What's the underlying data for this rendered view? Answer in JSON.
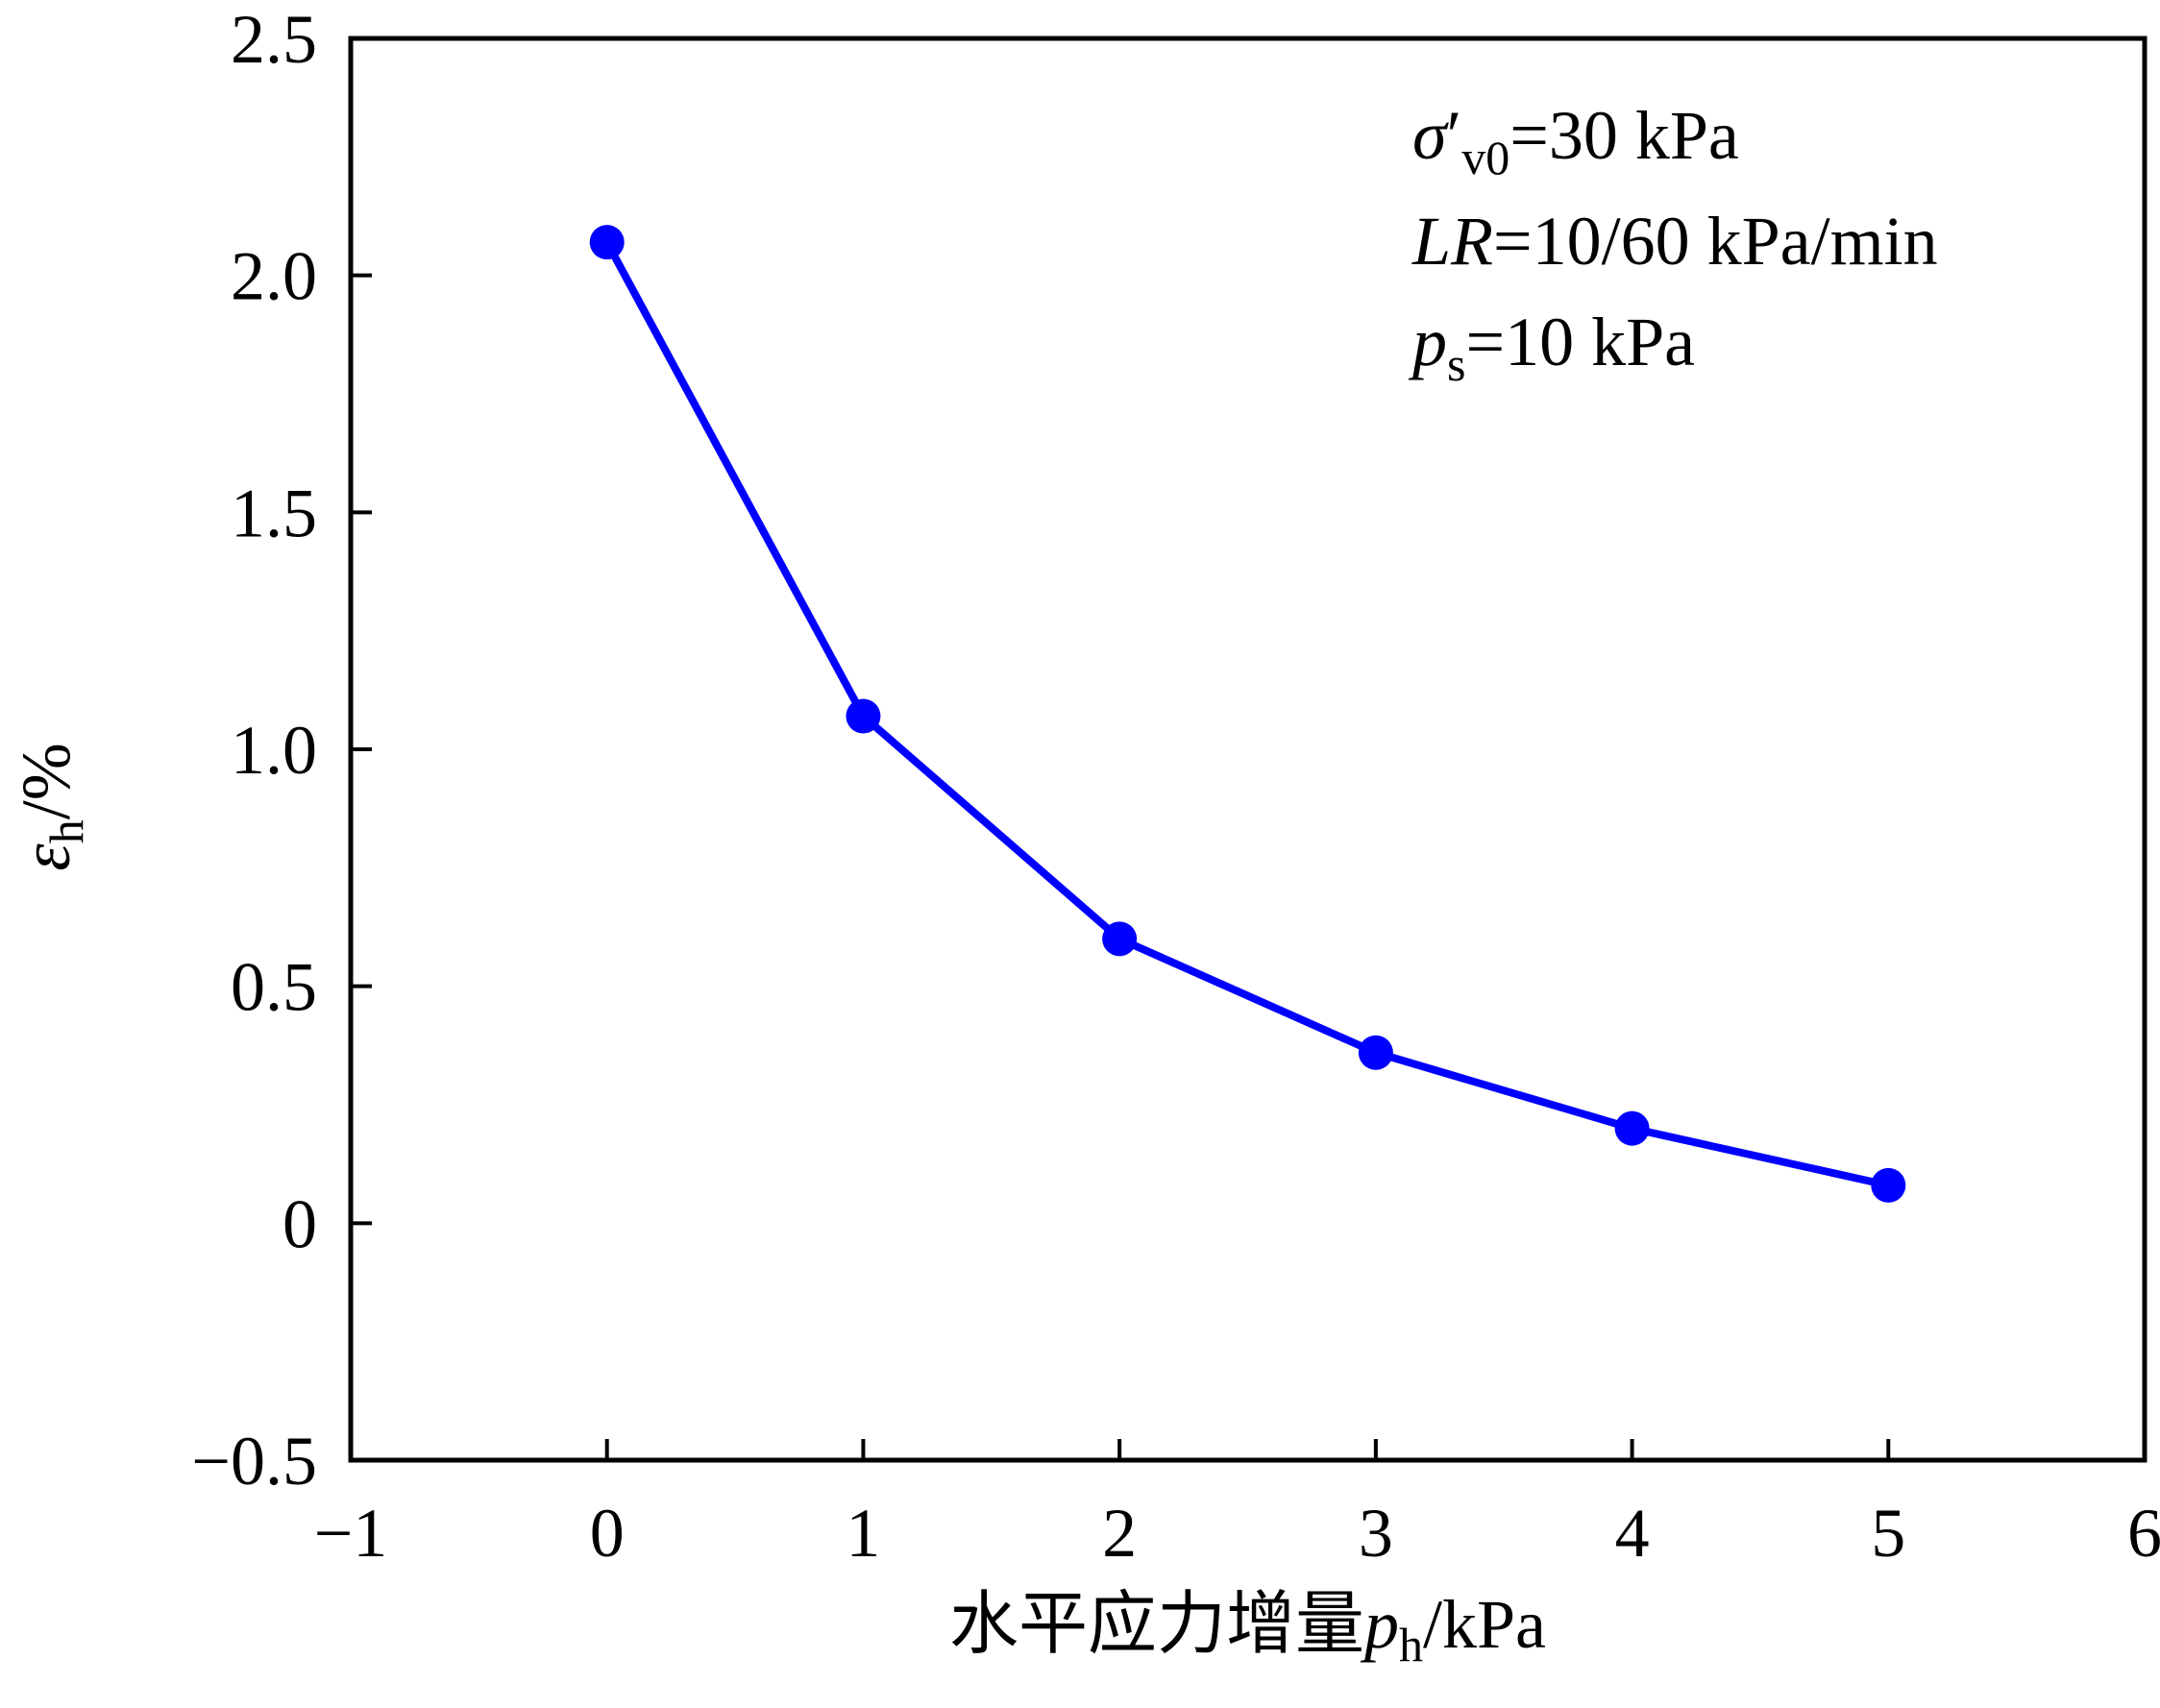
{
  "chart_data": {
    "type": "line",
    "x": [
      0,
      1,
      2,
      3,
      4,
      5
    ],
    "series": [
      {
        "values": [
          2.07,
          1.07,
          0.6,
          0.36,
          0.2,
          0.08
        ],
        "color": "#0000ff"
      }
    ],
    "xlim": [
      -1,
      6
    ],
    "ylim": [
      -0.5,
      2.5
    ],
    "x_ticks": [
      -1,
      0,
      1,
      2,
      3,
      4,
      5,
      6
    ],
    "x_tick_labels": [
      "−1",
      "0",
      "1",
      "2",
      "3",
      "4",
      "5",
      "6"
    ],
    "y_ticks": [
      -0.5,
      0,
      0.5,
      1.0,
      1.5,
      2.0,
      2.5
    ],
    "y_tick_labels": [
      "−0.5",
      "0",
      "0.5",
      "1.0",
      "1.5",
      "2.0",
      "2.5"
    ],
    "xlabel": {
      "prefix": "水平应力增量",
      "symbol": "p",
      "subscript": "h",
      "unit": "/kPa"
    },
    "ylabel": {
      "symbol": "ε",
      "subscript": "h",
      "unit": "/%"
    },
    "annotations": [
      {
        "symbol": "σ",
        "prime": "′",
        "subscript": "v0",
        "rest": "=30 kPa"
      },
      {
        "symbol": "LR",
        "subscript": "",
        "rest": "=10/60 kPa/min"
      },
      {
        "symbol": "p",
        "subscript": "s",
        "rest": "=10 kPa"
      }
    ],
    "grid": false,
    "legend": "none"
  }
}
